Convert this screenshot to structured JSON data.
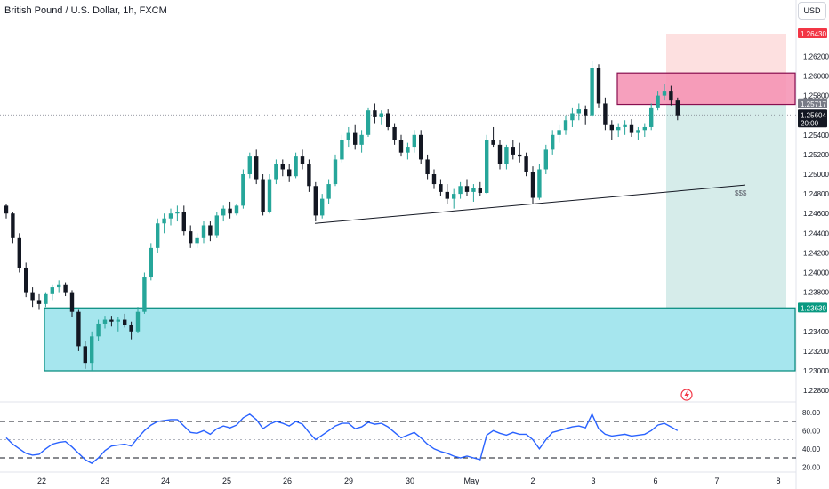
{
  "header": {
    "symbol_title": "British Pound / U.S. Dollar, 1h, FXCM",
    "currency_button": "USD"
  },
  "colors": {
    "up": "#26a69a",
    "down": "#131722",
    "supply_zone": "#f48fb1",
    "demand_zone": "#a6e6ee",
    "stop_zone": "#fcd6d6",
    "target_zone": "#cfe9e6",
    "rsi_line": "#2962ff",
    "entry_tag": "#787b86",
    "stop_tag": "#f23645",
    "target_tag": "#089981"
  },
  "chart_data": [
    {
      "type": "candlestick",
      "title": "British Pound / U.S. Dollar, 1h, FXCM",
      "x_tick_labels": [
        "22",
        "23",
        "24",
        "25",
        "26",
        "29",
        "30",
        "May",
        "2",
        "3",
        "6",
        "7",
        "8"
      ],
      "ylim": [
        1.2275,
        1.2675
      ],
      "y_tick_labels": [
        "1.26200",
        "1.26000",
        "1.25800",
        "1.25400",
        "1.25200",
        "1.25000",
        "1.24800",
        "1.24600",
        "1.24400",
        "1.24200",
        "1.24000",
        "1.23800",
        "1.23400",
        "1.23200",
        "1.23000",
        "1.22800"
      ],
      "price_tags": [
        {
          "role": "stop",
          "label": "1.26430",
          "value": 1.2643
        },
        {
          "role": "entry",
          "label": "1.25717",
          "value": 1.25717
        },
        {
          "role": "last",
          "label": "1.25604",
          "value": 1.25604,
          "countdown": "20:00"
        },
        {
          "role": "target",
          "label": "1.23639",
          "value": 1.23639
        }
      ],
      "zones": [
        {
          "role": "demand",
          "from": "Apr 22",
          "to": "May 8",
          "top": 1.2364,
          "bottom": 1.23
        },
        {
          "role": "supply",
          "from": "May 3",
          "to": "May 8",
          "top": 1.2603,
          "bottom": 1.2571
        }
      ],
      "position": {
        "side": "short",
        "entry": 1.25717,
        "stop": 1.2643,
        "target": 1.23639
      },
      "trendline": {
        "from": {
          "x": "Apr 26",
          "y": 1.245
        },
        "to": {
          "x": "May 7",
          "y": 1.2489
        },
        "label": "$$$"
      },
      "series": [
        {
          "values": [
            [
              1.2468,
              1.247,
              1.2455,
              1.246
            ],
            [
              1.246,
              1.2462,
              1.243,
              1.2435
            ],
            [
              1.2435,
              1.244,
              1.24,
              1.2405
            ],
            [
              1.2405,
              1.241,
              1.2375,
              1.238
            ],
            [
              1.238,
              1.2385,
              1.2365,
              1.2372
            ],
            [
              1.2372,
              1.2378,
              1.2362,
              1.2368
            ],
            [
              1.2368,
              1.238,
              1.2365,
              1.2378
            ],
            [
              1.2378,
              1.2388,
              1.2372,
              1.2385
            ],
            [
              1.2385,
              1.2392,
              1.238,
              1.2388
            ],
            [
              1.2388,
              1.239,
              1.2376,
              1.238
            ],
            [
              1.238,
              1.2382,
              1.2355,
              1.236
            ],
            [
              1.236,
              1.2362,
              1.232,
              1.2325
            ],
            [
              1.2325,
              1.233,
              1.2302,
              1.2308
            ],
            [
              1.2308,
              1.234,
              1.23,
              1.2335
            ],
            [
              1.2335,
              1.2352,
              1.233,
              1.2348
            ],
            [
              1.2348,
              1.2356,
              1.2343,
              1.2352
            ],
            [
              1.2352,
              1.2356,
              1.2345,
              1.235
            ],
            [
              1.235,
              1.2355,
              1.234,
              1.2352
            ],
            [
              1.2352,
              1.2358,
              1.2344,
              1.2347
            ],
            [
              1.2347,
              1.235,
              1.2332,
              1.234
            ],
            [
              1.234,
              1.2365,
              1.2338,
              1.236
            ],
            [
              1.236,
              1.24,
              1.2358,
              1.2395
            ],
            [
              1.2395,
              1.243,
              1.2392,
              1.2425
            ],
            [
              1.2425,
              1.2455,
              1.242,
              1.245
            ],
            [
              1.245,
              1.246,
              1.244,
              1.2455
            ],
            [
              1.2455,
              1.2465,
              1.2448,
              1.246
            ],
            [
              1.246,
              1.2468,
              1.2452,
              1.2462
            ],
            [
              1.2462,
              1.2468,
              1.2438,
              1.2442
            ],
            [
              1.2442,
              1.2448,
              1.2425,
              1.243
            ],
            [
              1.243,
              1.244,
              1.2425,
              1.2435
            ],
            [
              1.2435,
              1.2452,
              1.243,
              1.2448
            ],
            [
              1.2448,
              1.2452,
              1.2432,
              1.2438
            ],
            [
              1.2438,
              1.2462,
              1.2435,
              1.2458
            ],
            [
              1.2458,
              1.2468,
              1.2452,
              1.2465
            ],
            [
              1.2465,
              1.2472,
              1.2455,
              1.246
            ],
            [
              1.246,
              1.247,
              1.2458,
              1.2468
            ],
            [
              1.2468,
              1.2505,
              1.2465,
              1.25
            ],
            [
              1.25,
              1.2522,
              1.2496,
              1.2518
            ],
            [
              1.2518,
              1.2525,
              1.249,
              1.2495
            ],
            [
              1.2495,
              1.25,
              1.2458,
              1.2462
            ],
            [
              1.2462,
              1.25,
              1.246,
              1.2495
            ],
            [
              1.2495,
              1.2515,
              1.249,
              1.251
            ],
            [
              1.251,
              1.2515,
              1.2498,
              1.2505
            ],
            [
              1.2505,
              1.251,
              1.2492,
              1.2498
            ],
            [
              1.2498,
              1.2522,
              1.2496,
              1.2518
            ],
            [
              1.2518,
              1.2525,
              1.2505,
              1.251
            ],
            [
              1.251,
              1.2515,
              1.2482,
              1.2488
            ],
            [
              1.2488,
              1.2492,
              1.2452,
              1.2458
            ],
            [
              1.2458,
              1.248,
              1.2455,
              1.2475
            ],
            [
              1.2475,
              1.2495,
              1.247,
              1.249
            ],
            [
              1.249,
              1.252,
              1.2488,
              1.2515
            ],
            [
              1.2515,
              1.254,
              1.2512,
              1.2535
            ],
            [
              1.2535,
              1.2548,
              1.2528,
              1.2542
            ],
            [
              1.2542,
              1.255,
              1.2525,
              1.253
            ],
            [
              1.253,
              1.2545,
              1.2522,
              1.254
            ],
            [
              1.254,
              1.2568,
              1.2538,
              1.2565
            ],
            [
              1.2565,
              1.2572,
              1.2552,
              1.2558
            ],
            [
              1.2558,
              1.2565,
              1.255,
              1.2562
            ],
            [
              1.2562,
              1.2566,
              1.2545,
              1.2548
            ],
            [
              1.2548,
              1.2552,
              1.253,
              1.2535
            ],
            [
              1.2535,
              1.254,
              1.2518,
              1.2522
            ],
            [
              1.2522,
              1.2532,
              1.2515,
              1.2528
            ],
            [
              1.2528,
              1.2545,
              1.2522,
              1.254
            ],
            [
              1.254,
              1.2545,
              1.251,
              1.2515
            ],
            [
              1.2515,
              1.252,
              1.2495,
              1.25
            ],
            [
              1.25,
              1.2505,
              1.2485,
              1.249
            ],
            [
              1.249,
              1.2495,
              1.2478,
              1.2482
            ],
            [
              1.2482,
              1.249,
              1.247,
              1.2475
            ],
            [
              1.2475,
              1.2485,
              1.2465,
              1.248
            ],
            [
              1.248,
              1.2492,
              1.2475,
              1.2488
            ],
            [
              1.2488,
              1.2495,
              1.2478,
              1.2482
            ],
            [
              1.2482,
              1.249,
              1.2472,
              1.2486
            ],
            [
              1.2486,
              1.2492,
              1.2478,
              1.2481
            ],
            [
              1.2481,
              1.254,
              1.248,
              1.2535
            ],
            [
              1.2535,
              1.2548,
              1.2528,
              1.253
            ],
            [
              1.253,
              1.2535,
              1.2505,
              1.251
            ],
            [
              1.251,
              1.253,
              1.2505,
              1.2528
            ],
            [
              1.2528,
              1.2535,
              1.2515,
              1.252
            ],
            [
              1.252,
              1.2532,
              1.2512,
              1.2518
            ],
            [
              1.2518,
              1.2522,
              1.2498,
              1.2502
            ],
            [
              1.2502,
              1.2508,
              1.247,
              1.2476
            ],
            [
              1.2476,
              1.251,
              1.2474,
              1.2505
            ],
            [
              1.2505,
              1.253,
              1.25,
              1.2525
            ],
            [
              1.2525,
              1.2545,
              1.252,
              1.254
            ],
            [
              1.254,
              1.255,
              1.2532,
              1.2545
            ],
            [
              1.2545,
              1.256,
              1.254,
              1.2555
            ],
            [
              1.2555,
              1.2568,
              1.2548,
              1.2562
            ],
            [
              1.2562,
              1.2572,
              1.2555,
              1.2566
            ],
            [
              1.2566,
              1.257,
              1.255,
              1.256
            ],
            [
              1.256,
              1.2615,
              1.2558,
              1.2608
            ],
            [
              1.2608,
              1.2612,
              1.2568,
              1.2572
            ],
            [
              1.2572,
              1.2578,
              1.2545,
              1.255
            ],
            [
              1.255,
              1.2555,
              1.2535,
              1.2545
            ],
            [
              1.2545,
              1.2552,
              1.2538,
              1.2548
            ],
            [
              1.2548,
              1.2555,
              1.254,
              1.255
            ],
            [
              1.255,
              1.2556,
              1.2538,
              1.2542
            ],
            [
              1.2542,
              1.2548,
              1.2535,
              1.2545
            ],
            [
              1.2545,
              1.2552,
              1.2538,
              1.2548
            ],
            [
              1.2548,
              1.2572,
              1.2545,
              1.2568
            ],
            [
              1.2568,
              1.2585,
              1.2565,
              1.258
            ],
            [
              1.258,
              1.2592,
              1.2575,
              1.2585
            ],
            [
              1.2585,
              1.259,
              1.257,
              1.2575
            ],
            [
              1.2575,
              1.2578,
              1.2555,
              1.256
            ]
          ]
        }
      ]
    },
    {
      "type": "line",
      "y_tick_labels": [
        "80.00",
        "60.00",
        "40.00",
        "20.00"
      ],
      "ylim": [
        15,
        88
      ],
      "bands": [
        70,
        50,
        30
      ],
      "series": [
        {
          "values": [
            52,
            45,
            40,
            35,
            33,
            34,
            40,
            45,
            47,
            48,
            42,
            35,
            28,
            24,
            30,
            38,
            43,
            44,
            45,
            43,
            52,
            60,
            66,
            70,
            71,
            72,
            72,
            65,
            58,
            57,
            60,
            56,
            62,
            65,
            63,
            66,
            74,
            78,
            72,
            62,
            67,
            70,
            68,
            65,
            70,
            67,
            58,
            50,
            55,
            60,
            65,
            68,
            68,
            62,
            64,
            69,
            67,
            68,
            64,
            58,
            52,
            55,
            58,
            52,
            45,
            40,
            37,
            35,
            32,
            30,
            32,
            30,
            28,
            55,
            60,
            57,
            55,
            58,
            56,
            56,
            50,
            40,
            50,
            58,
            60,
            62,
            64,
            65,
            63,
            78,
            62,
            56,
            54,
            55,
            56,
            54,
            55,
            56,
            60,
            66,
            68,
            64,
            60
          ]
        }
      ]
    }
  ]
}
